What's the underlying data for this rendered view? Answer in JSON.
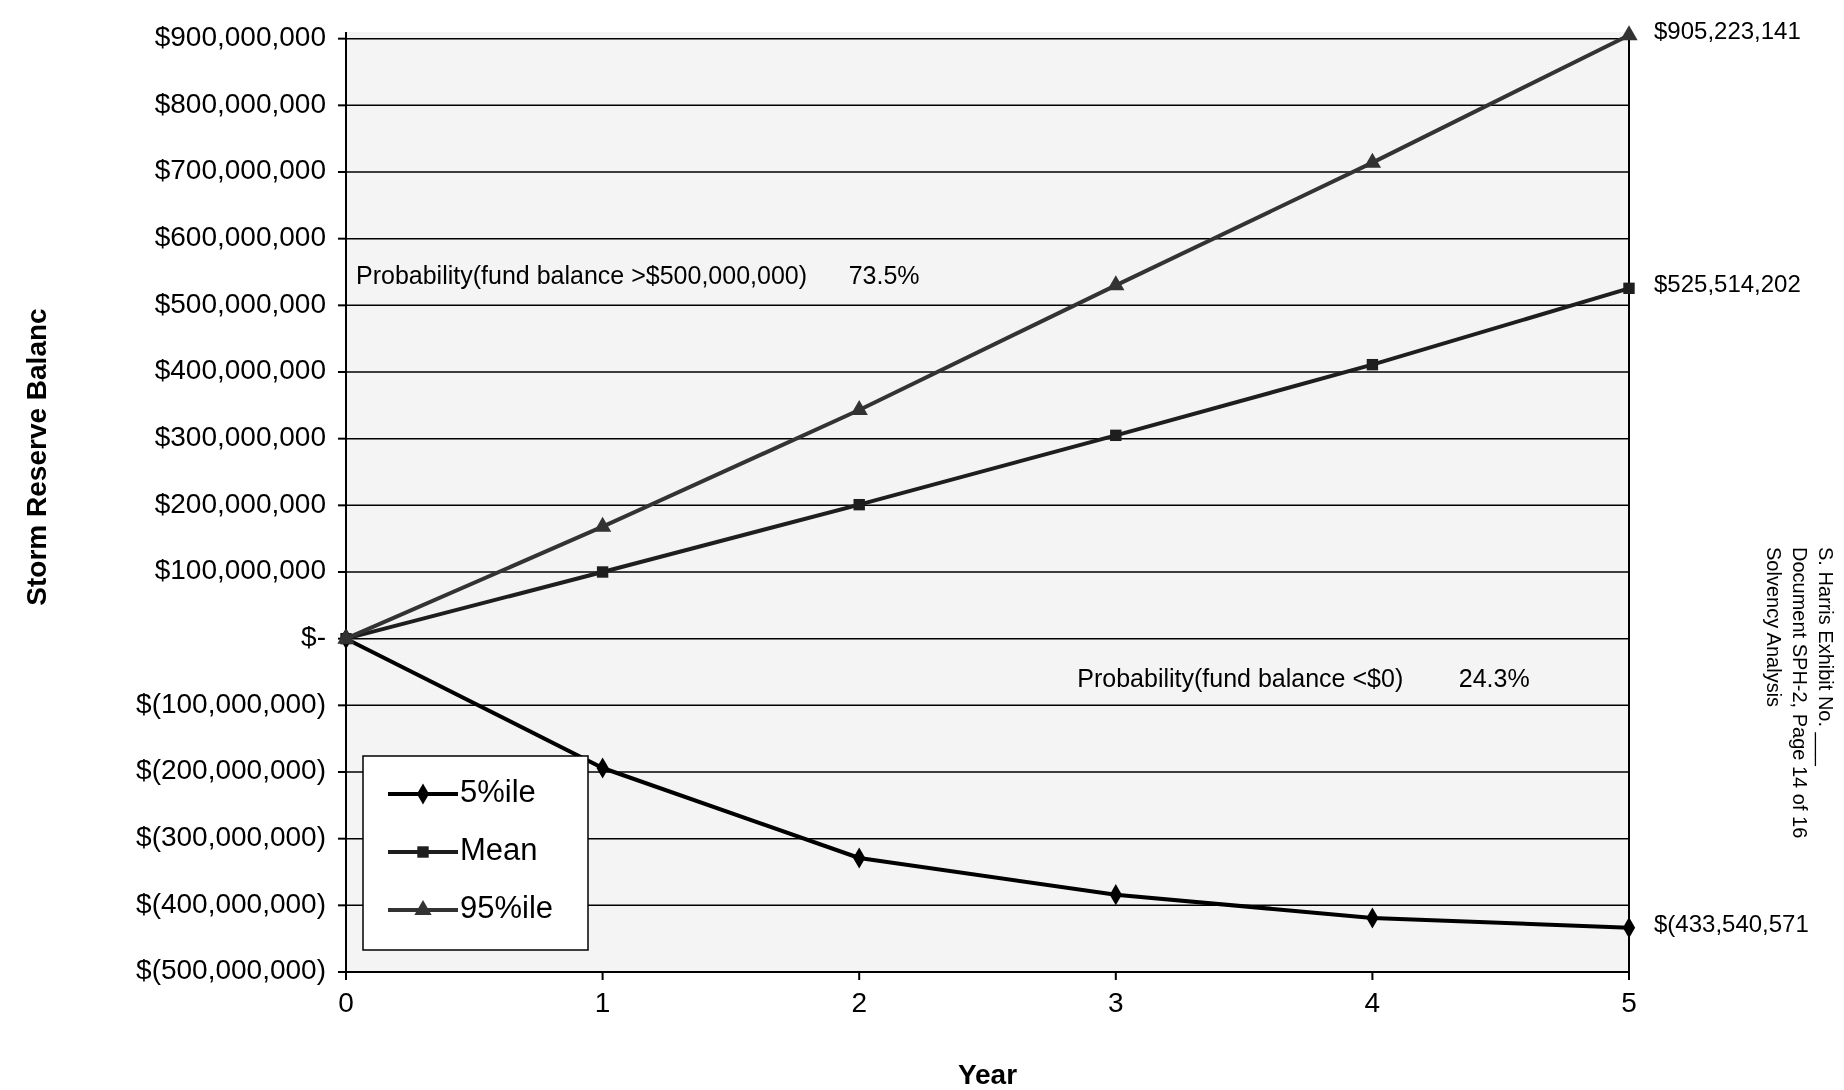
{
  "chart_data": {
    "type": "line",
    "xlabel": "Year",
    "ylabel": "Storm Reserve Balanc",
    "x": [
      0,
      1,
      2,
      3,
      4,
      5
    ],
    "series": [
      {
        "name": "5%ile",
        "color": "#000000",
        "marker": "diamond",
        "values": [
          0,
          -194000000,
          -329000000,
          -384000000,
          -419000000,
          -433540571
        ],
        "value_labels": [
          null,
          null,
          null,
          null,
          null,
          "$(433,540,571"
        ]
      },
      {
        "name": "Mean",
        "color": "#1e1e1e",
        "marker": "square",
        "values": [
          0,
          100000000,
          201000000,
          305000000,
          411000000,
          525514202
        ],
        "value_labels": [
          null,
          null,
          null,
          null,
          null,
          "$525,514,202"
        ]
      },
      {
        "name": "95%ile",
        "color": "#333333",
        "marker": "triangle",
        "values": [
          0,
          168000000,
          343000000,
          530000000,
          714000000,
          905223141
        ],
        "value_labels": [
          null,
          null,
          null,
          null,
          null,
          "$905,223,141"
        ]
      }
    ],
    "xlim": [
      0,
      5
    ],
    "xticks": [
      0,
      1,
      2,
      3,
      4,
      5
    ],
    "ylim": [
      -500000000,
      910000000
    ],
    "yticks": [
      {
        "value": 900000000,
        "label": "$900,000,000"
      },
      {
        "value": 800000000,
        "label": "$800,000,000"
      },
      {
        "value": 700000000,
        "label": "$700,000,000"
      },
      {
        "value": 600000000,
        "label": "$600,000,000"
      },
      {
        "value": 500000000,
        "label": "$500,000,000"
      },
      {
        "value": 400000000,
        "label": "$400,000,000"
      },
      {
        "value": 300000000,
        "label": "$300,000,000"
      },
      {
        "value": 200000000,
        "label": "$200,000,000"
      },
      {
        "value": 100000000,
        "label": "$100,000,000"
      },
      {
        "value": 0,
        "label": "$-"
      },
      {
        "value": -100000000,
        "label": "$(100,000,000)"
      },
      {
        "value": -200000000,
        "label": "$(200,000,000)"
      },
      {
        "value": -300000000,
        "label": "$(300,000,000)"
      },
      {
        "value": -400000000,
        "label": "$(400,000,000)"
      },
      {
        "value": -500000000,
        "label": "$(500,000,000)"
      }
    ],
    "grid": "y",
    "legend": "bottom left",
    "line_style": "solid",
    "annotations": [
      "Probability(fund balance >$500,000,000)      73.5%",
      "Probability(fund balance <$0)        24.3%",
      "S. Harris Exhibit No. ___\nDocument SPH-2, Page 14 of 16\nSolvency Analysis"
    ]
  }
}
